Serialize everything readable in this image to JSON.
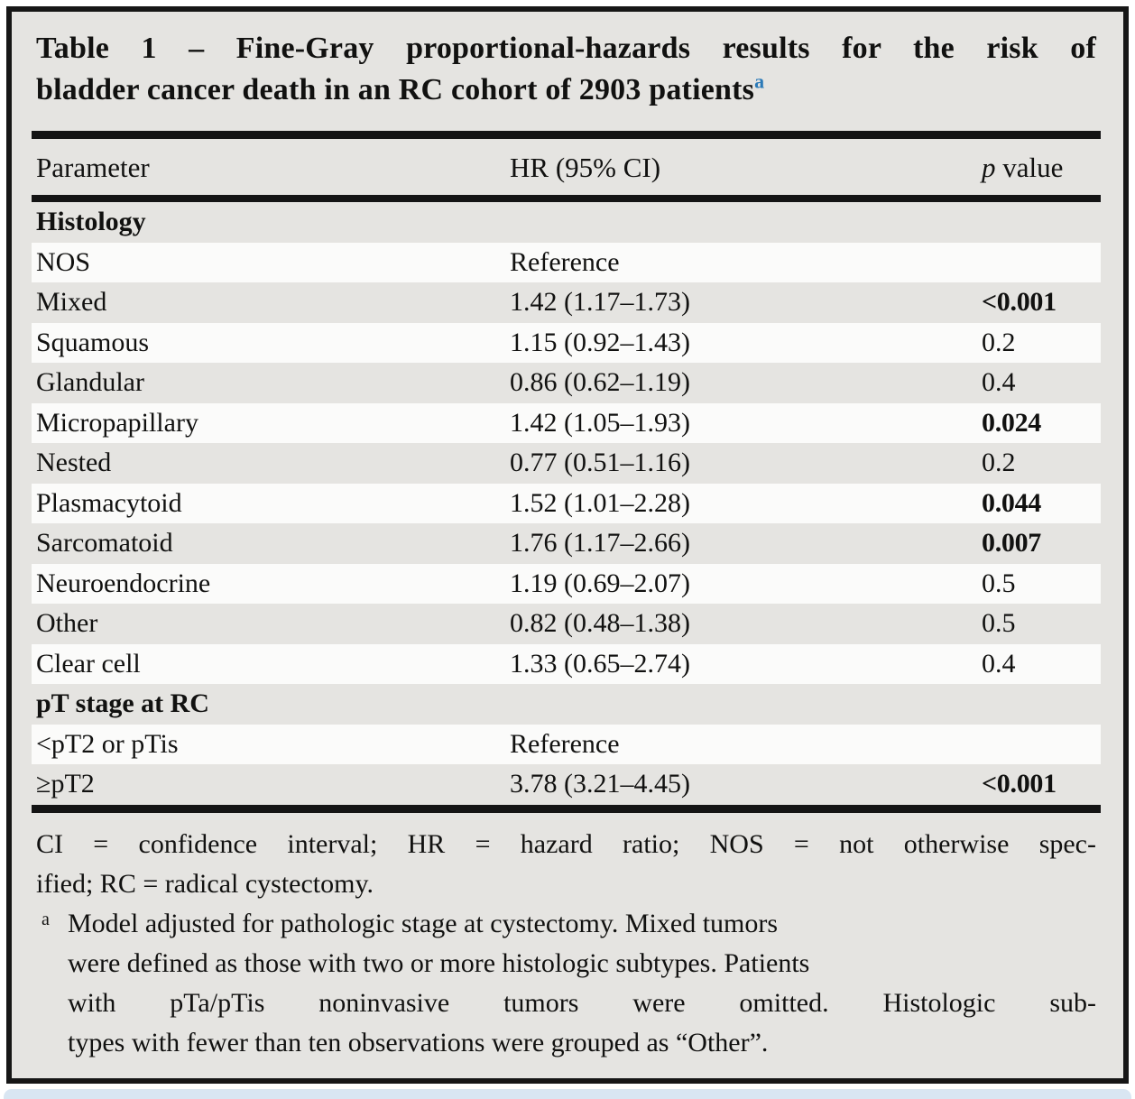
{
  "colors": {
    "frame_border": "#161616",
    "table_background": "#e5e4e1",
    "row_stripe": "#fbfbfa",
    "text": "#111110",
    "footnote_marker_blue": "#2b7ab8",
    "bottom_strip_blue": "#d9e6f2"
  },
  "title": {
    "line1": "Table 1 – Fine-Gray proportional-hazards results for the risk of",
    "line2": "bladder cancer death in an RC cohort of 2903 patients",
    "superscript": "a"
  },
  "header": {
    "parameter": "Parameter",
    "hr": "HR (95% CI)",
    "p_italic": "p",
    "p_rest": "value"
  },
  "table": {
    "rows": [
      {
        "type": "section",
        "parameter": "Histology",
        "hr": "",
        "p": ""
      },
      {
        "type": "data",
        "parameter": "NOS",
        "hr": "Reference",
        "p": ""
      },
      {
        "type": "data",
        "parameter": "Mixed",
        "hr": "1.42 (1.17–1.73)",
        "p": "<0.001",
        "p_bold": true
      },
      {
        "type": "data",
        "parameter": "Squamous",
        "hr": "1.15 (0.92–1.43)",
        "p": "0.2",
        "p_bold": false
      },
      {
        "type": "data",
        "parameter": "Glandular",
        "hr": "0.86 (0.62–1.19)",
        "p": "0.4",
        "p_bold": false
      },
      {
        "type": "data",
        "parameter": "Micropapillary",
        "hr": "1.42 (1.05–1.93)",
        "p": "0.024",
        "p_bold": true
      },
      {
        "type": "data",
        "parameter": "Nested",
        "hr": "0.77 (0.51–1.16)",
        "p": "0.2",
        "p_bold": false
      },
      {
        "type": "data",
        "parameter": "Plasmacytoid",
        "hr": "1.52 (1.01–2.28)",
        "p": "0.044",
        "p_bold": true
      },
      {
        "type": "data",
        "parameter": "Sarcomatoid",
        "hr": "1.76 (1.17–2.66)",
        "p": "0.007",
        "p_bold": true
      },
      {
        "type": "data",
        "parameter": "Neuroendocrine",
        "hr": "1.19 (0.69–2.07)",
        "p": "0.5",
        "p_bold": false
      },
      {
        "type": "data",
        "parameter": "Other",
        "hr": "0.82 (0.48–1.38)",
        "p": "0.5",
        "p_bold": false
      },
      {
        "type": "data",
        "parameter": "Clear cell",
        "hr": "1.33 (0.65–2.74)",
        "p": "0.4",
        "p_bold": false
      },
      {
        "type": "section",
        "parameter": "pT stage at RC",
        "hr": "",
        "p": ""
      },
      {
        "type": "data",
        "parameter": "<pT2 or pTis",
        "hr": "Reference",
        "p": ""
      },
      {
        "type": "data",
        "parameter": "≥pT2",
        "hr": "3.78 (3.21–4.45)",
        "p": "<0.001",
        "p_bold": true
      }
    ]
  },
  "footnotes": {
    "abbrev_line1": "CI = confidence interval; HR = hazard ratio; NOS = not otherwise spec-",
    "abbrev_line2": "ified; RC = radical cystectomy.",
    "note_a_marker": "a",
    "note_a_line1": "Model adjusted for pathologic stage at cystectomy. Mixed tumors",
    "note_a_line2": "were defined as those with two or more histologic subtypes. Patients",
    "note_a_line3": "with pTa/pTis noninvasive tumors were omitted. Histologic sub-",
    "note_a_line4": "types with fewer than ten observations were grouped as “Other”."
  }
}
